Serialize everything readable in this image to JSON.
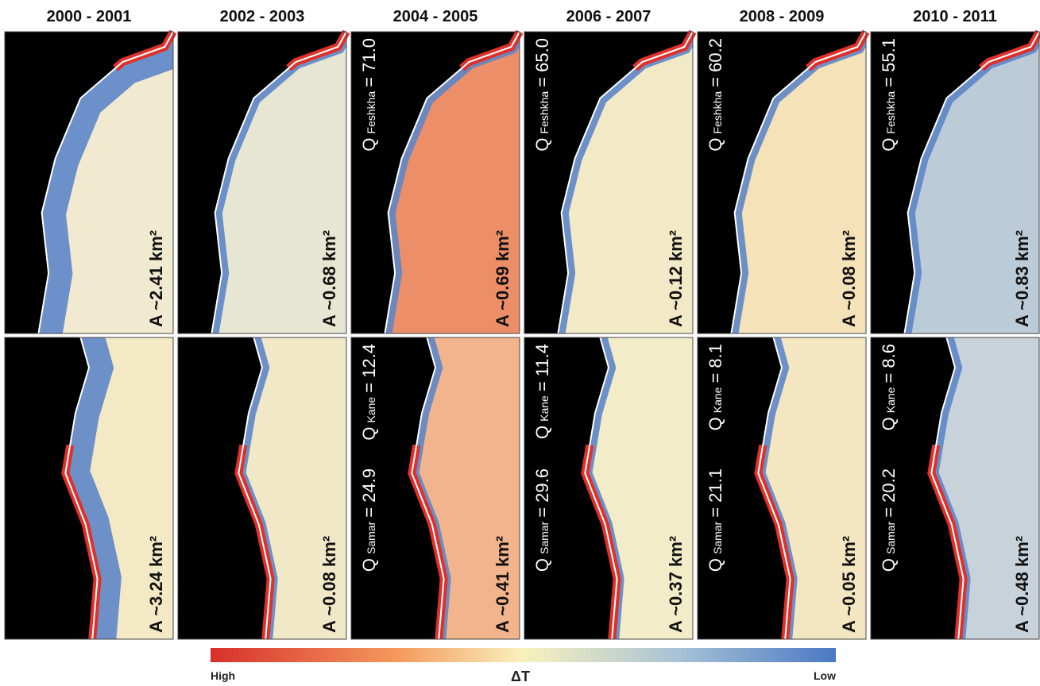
{
  "columns": [
    {
      "title": "2000 - 2001",
      "top": {
        "area": "A ~2.41 km²"
      },
      "bottom": {
        "area": "A ~3.24 km²"
      }
    },
    {
      "title": "2002 - 2003",
      "top": {
        "area": "A ~0.68 km²"
      },
      "bottom": {
        "area": "A ~0.08 km²"
      }
    },
    {
      "title": "2004 - 2005",
      "top": {
        "area": "A ~0.69 km²",
        "q": {
          "symbol": "Q",
          "subscript": "Feshkha",
          "value": "= 71.0"
        }
      },
      "bottom": {
        "area": "A ~0.41 km²",
        "q": {
          "symbol": "Q",
          "subscript": "Kane",
          "value": "= 12.4"
        },
        "q2": {
          "symbol": "Q",
          "subscript": "Samar",
          "value": "= 24.9"
        }
      }
    },
    {
      "title": "2006 - 2007",
      "top": {
        "area": "A ~0.12 km²",
        "q": {
          "symbol": "Q",
          "subscript": "Feshkha",
          "value": "= 65.0"
        }
      },
      "bottom": {
        "area": "A ~0.37 km²",
        "q": {
          "symbol": "Q",
          "subscript": "Kane",
          "value": "= 11.4"
        },
        "q2": {
          "symbol": "Q",
          "subscript": "Samar",
          "value": "= 29.6"
        }
      }
    },
    {
      "title": "2008 - 2009",
      "top": {
        "area": "A ~0.08 km²",
        "q": {
          "symbol": "Q",
          "subscript": "Feshkha",
          "value": "= 60.2"
        }
      },
      "bottom": {
        "area": "A ~0.05 km²",
        "q": {
          "symbol": "Q",
          "subscript": "Kane",
          "value": "= 8.1"
        },
        "q2": {
          "symbol": "Q",
          "subscript": "Samar",
          "value": "= 21.1"
        }
      }
    },
    {
      "title": "2010 - 2011",
      "top": {
        "area": "A ~0.83 km²",
        "q": {
          "symbol": "Q",
          "subscript": "Feshkha",
          "value": "= 55.1"
        }
      },
      "bottom": {
        "area": "A ~0.48 km²",
        "q": {
          "symbol": "Q",
          "subscript": "Kane",
          "value": "= 8.6"
        },
        "q2": {
          "symbol": "Q",
          "subscript": "Samar",
          "value": "= 20.2"
        }
      }
    }
  ],
  "colorbar": {
    "low_end": "High",
    "title": "ΔT",
    "high_end": "Low"
  }
}
